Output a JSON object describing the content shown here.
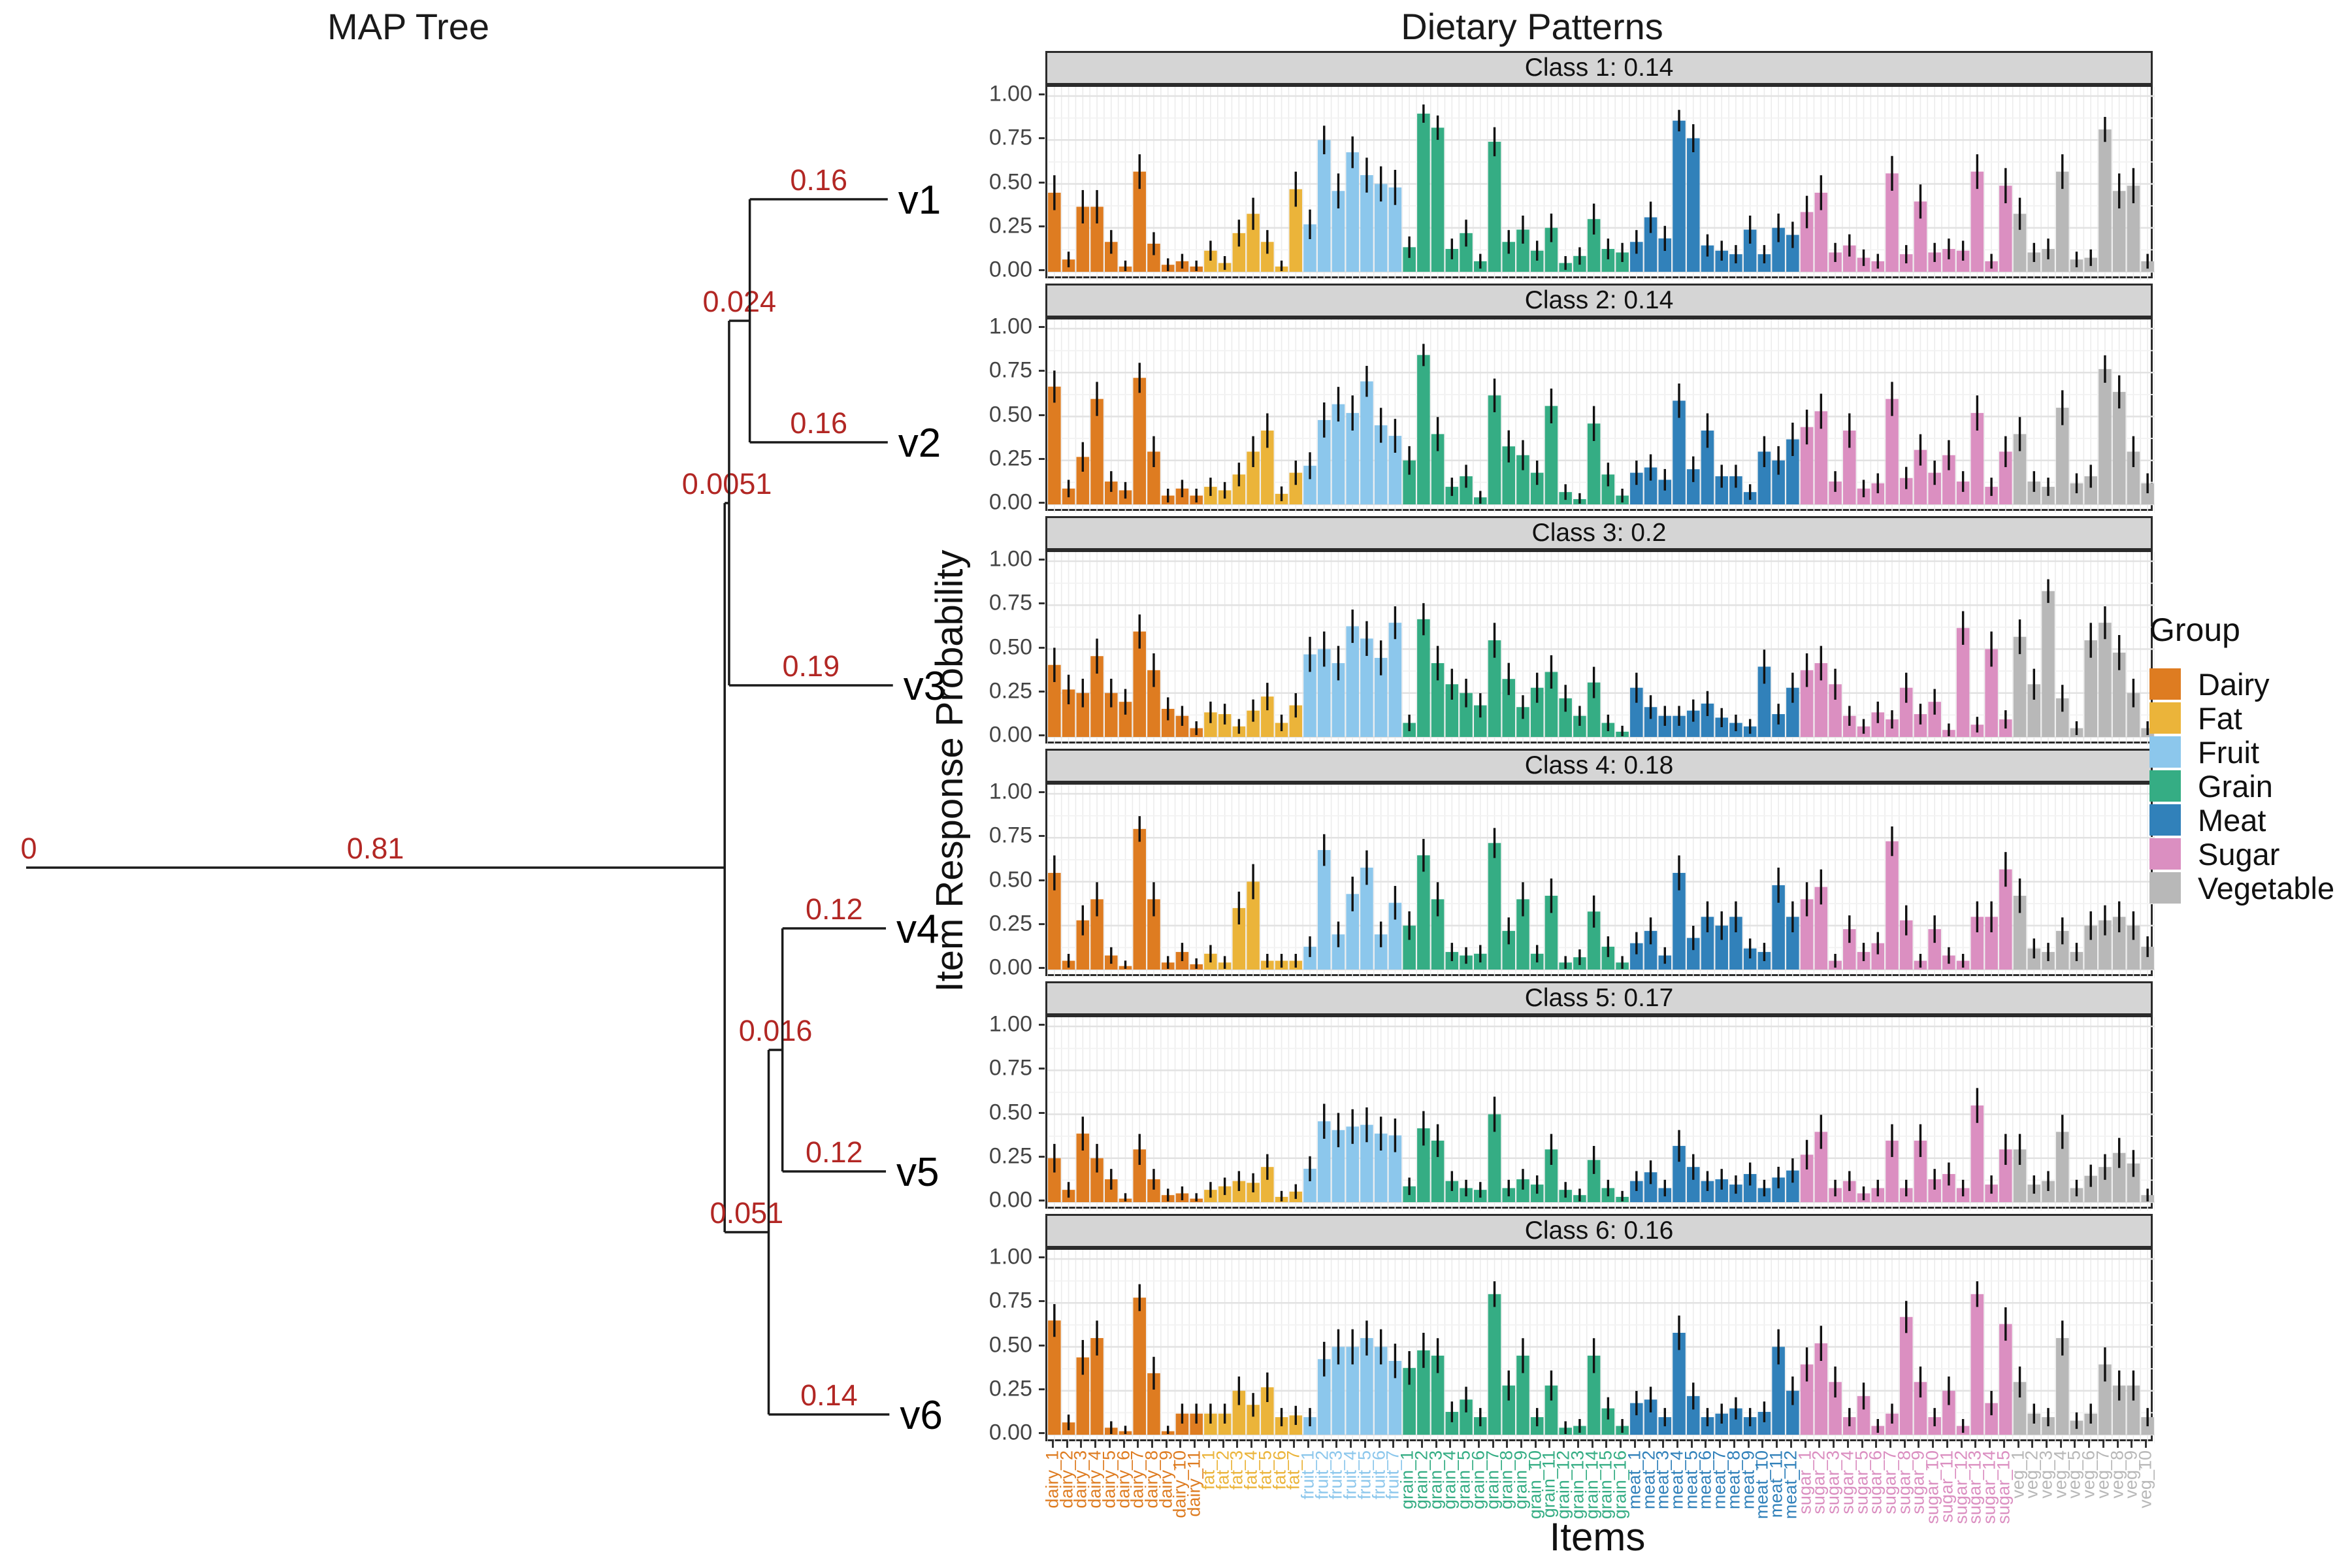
{
  "titles": {
    "left": "MAP Tree",
    "right": "Dietary Patterns"
  },
  "tree": {
    "label_color": "#B22724",
    "root_label": "0",
    "leaves_order": [
      "v1",
      "v2",
      "v3",
      "v4",
      "v5",
      "v6"
    ],
    "node": {
      "len": 0.81,
      "label": "0.81",
      "children": [
        {
          "len": 0.0051,
          "label": "0.0051",
          "children": [
            {
              "len": 0.024,
              "label": "0.024",
              "children": [
                {
                  "len": 0.16,
                  "label": "0.16",
                  "name": "v1"
                },
                {
                  "len": 0.16,
                  "label": "0.16",
                  "name": "v2"
                }
              ]
            },
            {
              "len": 0.19,
              "label": "0.19",
              "name": "v3"
            }
          ]
        },
        {
          "len": 0.051,
          "label": "0.051",
          "children": [
            {
              "len": 0.016,
              "label": "0.016",
              "children": [
                {
                  "len": 0.12,
                  "label": "0.12",
                  "name": "v4"
                },
                {
                  "len": 0.12,
                  "label": "0.12",
                  "name": "v5"
                }
              ]
            },
            {
              "len": 0.14,
              "label": "0.14",
              "name": "v6"
            }
          ]
        }
      ]
    }
  },
  "chart_data": {
    "type": "bar",
    "title": "Dietary Patterns",
    "xlabel": "Items",
    "ylabel": "Item Response Probability",
    "ylim": [
      0,
      1
    ],
    "yticks": [
      "1.00",
      "0.75",
      "0.50",
      "0.25",
      "0.00"
    ],
    "has_error_bars": true,
    "grid": true,
    "legend": {
      "title": "Group",
      "position": "right",
      "entries": [
        {
          "name": "Dairy",
          "color": "#DE7C21"
        },
        {
          "name": "Fat",
          "color": "#EBB43A"
        },
        {
          "name": "Fruit",
          "color": "#8CC7EC"
        },
        {
          "name": "Grain",
          "color": "#35AD84"
        },
        {
          "name": "Meat",
          "color": "#3181BA"
        },
        {
          "name": "Sugar",
          "color": "#DB8FC1"
        },
        {
          "name": "Vegetable",
          "color": "#B8B8B8"
        }
      ]
    },
    "groups": [
      {
        "name": "Dairy",
        "prefix": "dairy",
        "count": 11,
        "color": "#DE7C21"
      },
      {
        "name": "Fat",
        "prefix": "fat",
        "count": 7,
        "color": "#EBB43A"
      },
      {
        "name": "Fruit",
        "prefix": "fruit",
        "count": 7,
        "color": "#8CC7EC"
      },
      {
        "name": "Grain",
        "prefix": "grain",
        "count": 16,
        "color": "#35AD84"
      },
      {
        "name": "Meat",
        "prefix": "meat",
        "count": 12,
        "color": "#3181BA"
      },
      {
        "name": "Sugar",
        "prefix": "sugar",
        "count": 15,
        "color": "#DB8FC1"
      },
      {
        "name": "Vegetable",
        "prefix": "veg",
        "count": 10,
        "color": "#B8B8B8"
      }
    ],
    "items": [
      "dairy_1",
      "dairy_2",
      "dairy_3",
      "dairy_4",
      "dairy_5",
      "dairy_6",
      "dairy_7",
      "dairy_8",
      "dairy_9",
      "dairy_10",
      "dairy_11",
      "fat_1",
      "fat_2",
      "fat_3",
      "fat_4",
      "fat_5",
      "fat_6",
      "fat_7",
      "fruit_1",
      "fruit_2",
      "fruit_3",
      "fruit_4",
      "fruit_5",
      "fruit_6",
      "fruit_7",
      "grain_1",
      "grain_2",
      "grain_3",
      "grain_4",
      "grain_5",
      "grain_6",
      "grain_7",
      "grain_8",
      "grain_9",
      "grain_10",
      "grain_11",
      "grain_12",
      "grain_13",
      "grain_14",
      "grain_15",
      "grain_16",
      "meat_1",
      "meat_2",
      "meat_3",
      "meat_4",
      "meat_5",
      "meat_6",
      "meat_7",
      "meat_8",
      "meat_9",
      "meat_10",
      "meat_11",
      "meat_12",
      "sugar_1",
      "sugar_2",
      "sugar_3",
      "sugar_4",
      "sugar_5",
      "sugar_6",
      "sugar_7",
      "sugar_8",
      "sugar_9",
      "sugar_10",
      "sugar_11",
      "sugar_12",
      "sugar_13",
      "sugar_14",
      "sugar_15",
      "veg_1",
      "veg_2",
      "veg_3",
      "veg_4",
      "veg_5",
      "veg_6",
      "veg_7",
      "veg_8",
      "veg_9",
      "veg_10"
    ],
    "facets": [
      {
        "label": "Class 1: 0.14",
        "values": [
          0.45,
          0.07,
          0.37,
          0.37,
          0.17,
          0.03,
          0.57,
          0.16,
          0.04,
          0.06,
          0.03,
          0.12,
          0.05,
          0.22,
          0.33,
          0.17,
          0.03,
          0.47,
          0.27,
          0.75,
          0.46,
          0.68,
          0.55,
          0.5,
          0.48,
          0.14,
          0.9,
          0.82,
          0.13,
          0.22,
          0.06,
          0.74,
          0.17,
          0.24,
          0.12,
          0.25,
          0.05,
          0.09,
          0.3,
          0.13,
          0.11,
          0.17,
          0.31,
          0.19,
          0.86,
          0.76,
          0.15,
          0.12,
          0.1,
          0.24,
          0.1,
          0.25,
          0.21,
          0.34,
          0.45,
          0.11,
          0.15,
          0.08,
          0.06,
          0.56,
          0.1,
          0.4,
          0.11,
          0.13,
          0.12,
          0.57,
          0.06,
          0.49,
          0.33,
          0.11,
          0.13,
          0.57,
          0.07,
          0.08,
          0.81,
          0.46,
          0.49,
          0.06
        ]
      },
      {
        "label": "Class 2: 0.14",
        "values": [
          0.67,
          0.09,
          0.27,
          0.6,
          0.13,
          0.08,
          0.72,
          0.3,
          0.05,
          0.09,
          0.05,
          0.1,
          0.08,
          0.17,
          0.3,
          0.42,
          0.06,
          0.18,
          0.22,
          0.48,
          0.57,
          0.52,
          0.7,
          0.45,
          0.39,
          0.25,
          0.85,
          0.4,
          0.1,
          0.16,
          0.04,
          0.62,
          0.33,
          0.28,
          0.18,
          0.56,
          0.07,
          0.03,
          0.46,
          0.17,
          0.05,
          0.18,
          0.21,
          0.14,
          0.59,
          0.2,
          0.42,
          0.16,
          0.16,
          0.07,
          0.3,
          0.25,
          0.37,
          0.44,
          0.53,
          0.13,
          0.42,
          0.09,
          0.12,
          0.6,
          0.15,
          0.31,
          0.18,
          0.28,
          0.13,
          0.52,
          0.1,
          0.3,
          0.4,
          0.13,
          0.1,
          0.55,
          0.12,
          0.16,
          0.77,
          0.64,
          0.3,
          0.12
        ]
      },
      {
        "label": "Class 3: 0.2",
        "values": [
          0.41,
          0.27,
          0.25,
          0.46,
          0.25,
          0.2,
          0.6,
          0.38,
          0.16,
          0.12,
          0.05,
          0.14,
          0.13,
          0.06,
          0.15,
          0.23,
          0.08,
          0.18,
          0.47,
          0.5,
          0.42,
          0.63,
          0.56,
          0.45,
          0.65,
          0.08,
          0.67,
          0.42,
          0.3,
          0.25,
          0.18,
          0.55,
          0.33,
          0.17,
          0.28,
          0.37,
          0.22,
          0.12,
          0.31,
          0.08,
          0.03,
          0.28,
          0.17,
          0.12,
          0.12,
          0.15,
          0.19,
          0.11,
          0.08,
          0.06,
          0.4,
          0.13,
          0.28,
          0.38,
          0.42,
          0.3,
          0.12,
          0.06,
          0.14,
          0.1,
          0.28,
          0.13,
          0.2,
          0.04,
          0.62,
          0.07,
          0.5,
          0.1,
          0.57,
          0.3,
          0.83,
          0.22,
          0.05,
          0.55,
          0.65,
          0.48,
          0.25,
          0.05
        ]
      },
      {
        "label": "Class 4: 0.18",
        "values": [
          0.55,
          0.05,
          0.28,
          0.4,
          0.08,
          0.02,
          0.8,
          0.4,
          0.04,
          0.1,
          0.03,
          0.09,
          0.04,
          0.35,
          0.5,
          0.05,
          0.05,
          0.05,
          0.13,
          0.68,
          0.2,
          0.43,
          0.58,
          0.2,
          0.38,
          0.25,
          0.65,
          0.4,
          0.1,
          0.08,
          0.09,
          0.72,
          0.22,
          0.4,
          0.09,
          0.42,
          0.04,
          0.07,
          0.33,
          0.13,
          0.04,
          0.15,
          0.22,
          0.08,
          0.55,
          0.18,
          0.3,
          0.25,
          0.3,
          0.12,
          0.1,
          0.48,
          0.3,
          0.4,
          0.47,
          0.05,
          0.23,
          0.1,
          0.15,
          0.73,
          0.28,
          0.05,
          0.23,
          0.08,
          0.05,
          0.3,
          0.3,
          0.57,
          0.42,
          0.12,
          0.1,
          0.22,
          0.1,
          0.25,
          0.28,
          0.3,
          0.25,
          0.13
        ]
      },
      {
        "label": "Class 5: 0.17",
        "values": [
          0.25,
          0.07,
          0.39,
          0.25,
          0.13,
          0.02,
          0.3,
          0.13,
          0.04,
          0.05,
          0.02,
          0.07,
          0.09,
          0.12,
          0.11,
          0.2,
          0.03,
          0.06,
          0.19,
          0.46,
          0.41,
          0.43,
          0.44,
          0.39,
          0.38,
          0.09,
          0.42,
          0.35,
          0.12,
          0.08,
          0.07,
          0.5,
          0.08,
          0.13,
          0.1,
          0.3,
          0.07,
          0.04,
          0.24,
          0.08,
          0.03,
          0.12,
          0.17,
          0.08,
          0.32,
          0.2,
          0.12,
          0.13,
          0.1,
          0.16,
          0.08,
          0.14,
          0.18,
          0.27,
          0.4,
          0.08,
          0.12,
          0.05,
          0.08,
          0.35,
          0.08,
          0.35,
          0.13,
          0.16,
          0.08,
          0.55,
          0.1,
          0.3,
          0.3,
          0.1,
          0.12,
          0.4,
          0.08,
          0.15,
          0.2,
          0.28,
          0.22,
          0.04
        ]
      },
      {
        "label": "Class 6: 0.16",
        "values": [
          0.65,
          0.07,
          0.44,
          0.55,
          0.04,
          0.02,
          0.78,
          0.35,
          0.02,
          0.12,
          0.12,
          0.12,
          0.12,
          0.25,
          0.17,
          0.27,
          0.1,
          0.11,
          0.1,
          0.43,
          0.5,
          0.5,
          0.55,
          0.5,
          0.42,
          0.38,
          0.48,
          0.45,
          0.13,
          0.2,
          0.1,
          0.8,
          0.28,
          0.45,
          0.1,
          0.28,
          0.04,
          0.05,
          0.45,
          0.15,
          0.05,
          0.18,
          0.2,
          0.1,
          0.58,
          0.22,
          0.1,
          0.12,
          0.15,
          0.1,
          0.13,
          0.5,
          0.25,
          0.4,
          0.52,
          0.3,
          0.1,
          0.22,
          0.05,
          0.12,
          0.67,
          0.3,
          0.1,
          0.25,
          0.05,
          0.8,
          0.18,
          0.63,
          0.3,
          0.12,
          0.1,
          0.55,
          0.08,
          0.12,
          0.4,
          0.28,
          0.28,
          0.1
        ]
      }
    ]
  }
}
